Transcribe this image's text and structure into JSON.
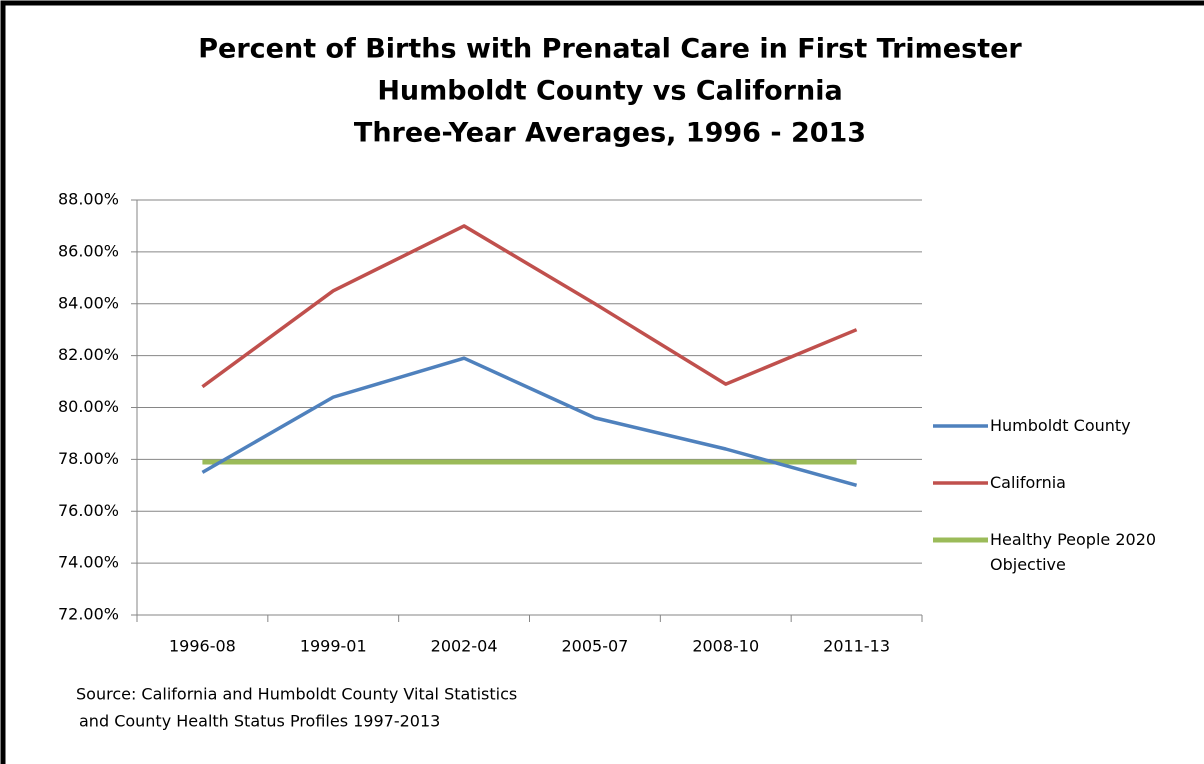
{
  "chart_data": {
    "type": "line",
    "title": [
      "Percent of Births with Prenatal Care in First Trimester",
      "Humboldt County vs California",
      "Three-Year Averages, 1996 - 2013"
    ],
    "categories": [
      "1996-08",
      "1999-01",
      "2002-04",
      "2005-07",
      "2008-10",
      "2011-13"
    ],
    "series": [
      {
        "name": "Humboldt County",
        "color": "#4f81bd",
        "values": [
          77.5,
          80.4,
          81.9,
          79.6,
          78.4,
          77.0
        ]
      },
      {
        "name": "California",
        "color": "#c0504d",
        "values": [
          80.8,
          84.5,
          87.0,
          84.0,
          80.9,
          83.0
        ]
      },
      {
        "name": "Healthy People 2020 Objective",
        "color": "#9bbb59",
        "values": [
          77.9,
          77.9,
          77.9,
          77.9,
          77.9,
          77.9
        ]
      }
    ],
    "ylim": [
      72,
      88
    ],
    "yticks": [
      {
        "value": 72,
        "label": "72.00%"
      },
      {
        "value": 74,
        "label": "74.00%"
      },
      {
        "value": 76,
        "label": "76.00%"
      },
      {
        "value": 78,
        "label": "78.00%"
      },
      {
        "value": 80,
        "label": "80.00%"
      },
      {
        "value": 82,
        "label": "82.00%"
      },
      {
        "value": 84,
        "label": "84.00%"
      },
      {
        "value": 86,
        "label": "86.00%"
      },
      {
        "value": 88,
        "label": "88.00%"
      }
    ],
    "grid": true,
    "legend": "right",
    "annotations": [
      "Source: California and Humboldt County Vital Statistics",
      "and County Health Status Profiles 1997-2013"
    ]
  }
}
